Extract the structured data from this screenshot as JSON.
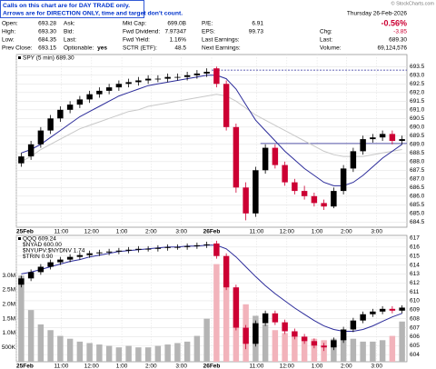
{
  "header": {
    "notice": [
      "Calls on this chart are for DAY TRADE only.",
      "Arrows are for DIRECTION ONLY, time and target don't count."
    ],
    "copyright": "© StockCharts.com",
    "date": "Thursday 26-Feb-2026",
    "change_pct": "-0.56%",
    "columns": [
      [
        {
          "label": "Open:",
          "value": "693.28"
        },
        {
          "label": "High:",
          "value": "693.30"
        },
        {
          "label": "Low:",
          "value": "684.35"
        },
        {
          "label": "Prev Close:",
          "value": "693.15"
        }
      ],
      [
        {
          "label": "Ask:"
        },
        {
          "label": "Bid:"
        },
        {
          "label": "Last:"
        },
        {
          "label": "Optionable:",
          "value": "yes"
        }
      ],
      [
        {
          "label": "Mkt Cap:",
          "value": "699.0B"
        },
        {
          "label": "Fwd Dividend:",
          "value": "7.97347"
        },
        {
          "label": "Fwd Yield:",
          "value": "1.16%"
        },
        {
          "label": "SCTR (ETF):",
          "value": "48.5"
        }
      ],
      [
        {
          "label": "P/E:",
          "value": "6.91"
        },
        {
          "label": "EPS:",
          "value": "99.73"
        },
        {
          "label": "Last Earnings:"
        },
        {
          "label": "Next Earnings:"
        }
      ],
      [
        {
          "label": "Chg:",
          "value": "-3.85"
        },
        {
          "label": "Last:",
          "value": "689.30"
        },
        {
          "label": "Volume:",
          "value": "69,124,576"
        }
      ]
    ]
  },
  "chart_data": [
    {
      "type": "candlestick",
      "legend": [
        "SPY (5 min) 689.30"
      ],
      "open": [
        687.9,
        688.3,
        689.0,
        689.8,
        690.5,
        691.0,
        691.3,
        691.6,
        691.9,
        692.1,
        692.3,
        692.5,
        692.6,
        692.7,
        692.8,
        692.8,
        692.9,
        692.9,
        693.0,
        693.1,
        693.4,
        692.5,
        690.0,
        686.5,
        685.0,
        687.5,
        688.8,
        687.8,
        686.8,
        686.3,
        686.0,
        685.6,
        685.4,
        686.3,
        687.6,
        688.6,
        689.3,
        689.4,
        689.6,
        689.2
      ],
      "high": [
        688.5,
        689.2,
        690.0,
        690.7,
        691.2,
        691.5,
        691.8,
        692.1,
        692.3,
        692.5,
        692.7,
        692.8,
        692.9,
        693.0,
        693.0,
        693.1,
        693.1,
        693.2,
        693.3,
        693.4,
        693.5,
        692.7,
        690.2,
        686.8,
        687.7,
        689.0,
        689.0,
        688.0,
        687.0,
        686.6,
        686.2,
        685.8,
        686.5,
        687.8,
        688.8,
        689.5,
        689.6,
        689.8,
        689.8,
        689.5
      ],
      "low": [
        687.7,
        688.1,
        688.8,
        689.6,
        690.3,
        690.8,
        691.1,
        691.4,
        691.7,
        691.9,
        692.1,
        692.3,
        692.4,
        692.5,
        692.6,
        692.6,
        692.7,
        692.7,
        692.8,
        692.9,
        692.3,
        689.8,
        686.2,
        684.6,
        684.8,
        687.3,
        687.6,
        686.6,
        686.1,
        685.8,
        685.4,
        685.2,
        685.3,
        686.1,
        687.4,
        688.4,
        689.1,
        689.2,
        689.0,
        689.0
      ],
      "close": [
        688.3,
        689.0,
        689.8,
        690.5,
        691.0,
        691.3,
        691.6,
        691.9,
        692.1,
        692.3,
        692.5,
        692.6,
        692.7,
        692.8,
        692.8,
        692.9,
        692.9,
        693.0,
        693.1,
        693.2,
        692.5,
        690.0,
        686.5,
        685.0,
        687.5,
        688.8,
        687.8,
        686.8,
        686.3,
        686.0,
        685.6,
        685.4,
        686.3,
        687.6,
        688.6,
        689.3,
        689.4,
        689.6,
        689.2,
        689.3
      ],
      "overlays": [
        {
          "color": "#c8c8c8",
          "values": [
            688,
            688.3,
            688.7,
            689,
            689.3,
            689.6,
            689.9,
            690.1,
            690.3,
            690.5,
            690.7,
            690.9,
            691,
            691.2,
            691.3,
            691.4,
            691.5,
            691.6,
            691.7,
            691.8,
            691.9,
            691.8,
            691.5,
            691.1,
            690.7,
            690.4,
            690.1,
            689.8,
            689.5,
            689.2,
            688.9,
            688.6,
            688.4,
            688.3,
            688.3,
            688.3,
            688.4,
            688.5,
            688.6,
            688.7
          ]
        },
        {
          "color": "#2b2b9a",
          "values": [
            688.5,
            688.7,
            689,
            689.4,
            689.8,
            690.2,
            690.6,
            690.9,
            691.2,
            691.5,
            691.8,
            692,
            692.2,
            692.4,
            692.5,
            692.6,
            692.7,
            692.8,
            692.9,
            693,
            693,
            692.8,
            692.2,
            691.3,
            690.4,
            689.8,
            689.2,
            688.6,
            688.1,
            687.6,
            687.2,
            686.8,
            686.6,
            686.6,
            686.8,
            687.2,
            687.7,
            688.2,
            688.6,
            689
          ]
        }
      ],
      "hlines": [
        {
          "value": 693.3,
          "start": 20,
          "dashed": true,
          "color": "#2b2b9a"
        },
        {
          "value": 689.05,
          "start": 25,
          "dashed": false,
          "color": "#2b2b9a"
        }
      ],
      "up_color": "#000000",
      "down_color": "#cc0033",
      "xlim": [
        0,
        40
      ],
      "ylim": [
        684.2,
        694.2
      ],
      "yticks": [
        684.5,
        {
          "value": 685,
          "label": "685.0"
        },
        685.5,
        {
          "value": 686,
          "label": "686.0"
        },
        686.5,
        {
          "value": 687,
          "label": "687.0"
        },
        687.5,
        {
          "value": 688,
          "label": "688.0"
        },
        688.5,
        {
          "value": 689,
          "label": "689.0"
        },
        689.5,
        {
          "value": 690,
          "label": "690.0"
        },
        690.5,
        {
          "value": 691,
          "label": "691.0"
        },
        691.5,
        {
          "value": 692,
          "label": "692.0"
        },
        692.5,
        {
          "value": 693,
          "label": "693.0"
        },
        693.5
      ],
      "xticks": [
        {
          "value": 0,
          "label": "25Feb"
        },
        {
          "value": 4.6,
          "label": "11:00"
        },
        {
          "value": 7.7,
          "label": "12:00"
        },
        {
          "value": 10.8,
          "label": "1:00"
        },
        {
          "value": 13.8,
          "label": "2:00"
        },
        {
          "value": 16.9,
          "label": "3:00"
        },
        {
          "value": 20,
          "label": "26Feb"
        },
        {
          "value": 24.6,
          "label": "11:00"
        },
        {
          "value": 27.7,
          "label": "12:00"
        },
        {
          "value": 30.8,
          "label": "1:00"
        },
        {
          "value": 33.8,
          "label": "2:00"
        },
        {
          "value": 36.9,
          "label": "3:00"
        }
      ],
      "grid": true
    },
    {
      "type": "candlestick",
      "legend": [
        "QQQ 609.24",
        "$NYAD 600.00",
        "$NYUPV:$NYDNV 1.74",
        "$TRIN 0.90"
      ],
      "open": [
        611.8,
        612.5,
        613.2,
        613.8,
        614.3,
        614.6,
        614.9,
        615.1,
        615.3,
        615.4,
        615.5,
        615.6,
        615.7,
        615.8,
        615.8,
        615.9,
        616.0,
        616.0,
        616.1,
        616.2,
        616.4,
        615.0,
        611.5,
        607.0,
        605.2,
        607.5,
        608.6,
        607.6,
        606.6,
        606.0,
        605.5,
        605.0,
        604.8,
        605.6,
        606.8,
        607.8,
        608.5,
        608.8,
        609.1,
        608.9
      ],
      "high": [
        612.8,
        613.5,
        614.1,
        614.6,
        614.9,
        615.2,
        615.4,
        615.6,
        615.7,
        615.8,
        615.9,
        616.0,
        616.1,
        616.1,
        616.2,
        616.3,
        616.3,
        616.4,
        616.5,
        616.6,
        616.7,
        615.3,
        611.8,
        607.3,
        607.8,
        608.9,
        608.9,
        607.9,
        606.9,
        606.3,
        605.8,
        605.3,
        605.9,
        607.1,
        608.1,
        608.8,
        609.1,
        609.4,
        609.4,
        609.5
      ],
      "low": [
        611.5,
        612.2,
        612.9,
        613.5,
        614.0,
        614.3,
        614.6,
        614.8,
        615.0,
        615.1,
        615.2,
        615.3,
        615.4,
        615.5,
        615.5,
        615.6,
        615.7,
        615.7,
        615.8,
        615.9,
        614.7,
        611.2,
        606.7,
        604.6,
        604.9,
        607.2,
        607.3,
        606.3,
        605.7,
        605.2,
        604.7,
        604.4,
        604.5,
        605.3,
        606.5,
        607.5,
        608.2,
        608.5,
        608.6,
        608.6
      ],
      "close": [
        612.5,
        613.2,
        613.8,
        614.3,
        614.6,
        614.9,
        615.1,
        615.3,
        615.4,
        615.5,
        615.6,
        615.7,
        615.8,
        615.8,
        615.9,
        616.0,
        616.0,
        616.1,
        616.2,
        616.3,
        615.0,
        611.5,
        607.0,
        605.2,
        607.5,
        608.6,
        607.6,
        606.6,
        606.0,
        605.5,
        605.0,
        604.8,
        605.6,
        606.8,
        607.8,
        608.5,
        608.8,
        609.1,
        608.9,
        609.24
      ],
      "overlays": [
        {
          "color": "#2b2b9a",
          "values": [
            613,
            613.2,
            613.5,
            613.8,
            614.1,
            614.4,
            614.6,
            614.9,
            615.1,
            615.3,
            615.5,
            615.6,
            615.7,
            615.8,
            615.9,
            616,
            616,
            616.1,
            616.1,
            616.2,
            616.2,
            615.8,
            614.9,
            613.8,
            612.7,
            611.7,
            610.8,
            610,
            609.2,
            608.5,
            607.8,
            607.2,
            606.8,
            606.6,
            606.6,
            606.8,
            607.2,
            607.7,
            608.2,
            608.6
          ]
        }
      ],
      "up_color": "#000000",
      "down_color": "#cc0033",
      "volume": {
        "values": [
          3000000,
          1800000,
          1300000,
          1100000,
          900000,
          800000,
          700000,
          650000,
          600000,
          550000,
          500000,
          550000,
          500000,
          500000,
          550000,
          600000,
          650000,
          700000,
          900000,
          1500000,
          3400000,
          2800000,
          2500000,
          2000000,
          1600000,
          1300000,
          1100000,
          1000000,
          900000,
          850000,
          800000,
          750000,
          800000,
          850000,
          800000,
          700000,
          700000,
          750000,
          900000,
          1400000
        ],
        "ylim": [
          0,
          4400000
        ],
        "yticks": [
          {
            "value": 500000,
            "label": "500K"
          },
          {
            "value": 1000000,
            "label": "1.0M"
          },
          {
            "value": 1500000,
            "label": "1.5M"
          },
          {
            "value": 2000000,
            "label": "2.0M"
          },
          {
            "value": 2500000,
            "label": "2.5M"
          },
          {
            "value": 3000000,
            "label": "3.0M"
          }
        ],
        "up_color": "#b4b4b4",
        "down_color": "#f2b3bb"
      },
      "xlim": [
        0,
        40
      ],
      "ylim": [
        603.2,
        617.3
      ],
      "yticks": [
        604,
        605,
        606,
        607,
        608,
        609,
        610,
        611,
        612,
        613,
        614,
        615,
        616,
        617
      ],
      "xticks": [
        {
          "value": 0,
          "label": "25Feb"
        },
        {
          "value": 4.6,
          "label": "11:00"
        },
        {
          "value": 7.7,
          "label": "12:00"
        },
        {
          "value": 10.8,
          "label": "1:00"
        },
        {
          "value": 13.8,
          "label": "2:00"
        },
        {
          "value": 16.9,
          "label": "3:00"
        },
        {
          "value": 20,
          "label": "26Feb"
        },
        {
          "value": 24.6,
          "label": "11:00"
        },
        {
          "value": 27.7,
          "label": "12:00"
        },
        {
          "value": 30.8,
          "label": "1:00"
        },
        {
          "value": 33.8,
          "label": "2:00"
        },
        {
          "value": 36.9,
          "label": "3:00"
        }
      ],
      "grid": true
    }
  ]
}
